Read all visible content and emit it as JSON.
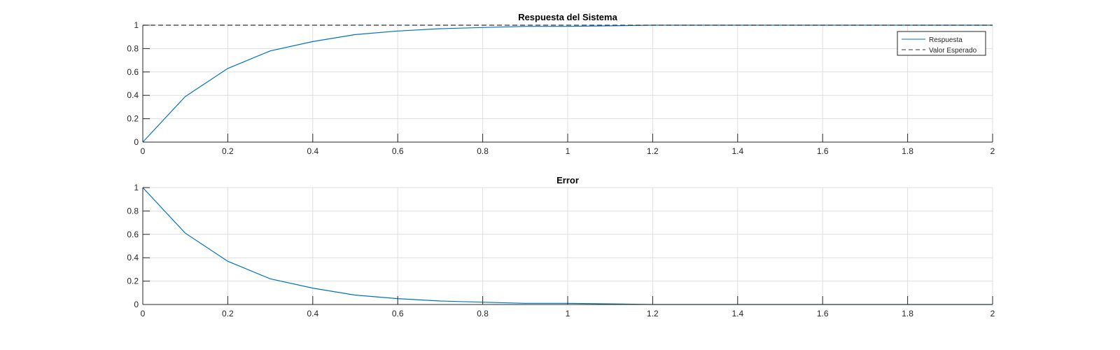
{
  "chart_data": [
    {
      "type": "line",
      "title": "Respuesta del Sistema",
      "xlabel": "",
      "ylabel": "",
      "xlim": [
        0,
        2
      ],
      "ylim": [
        0,
        1
      ],
      "xticks": [
        "0",
        "0.2",
        "0.4",
        "0.6",
        "0.8",
        "1",
        "1.2",
        "1.4",
        "1.6",
        "1.8",
        "2"
      ],
      "yticks": [
        "0",
        "0.2",
        "0.4",
        "0.6",
        "0.8",
        "1"
      ],
      "grid": true,
      "legend_position": "top-right",
      "x": [
        0,
        0.1,
        0.2,
        0.3,
        0.4,
        0.5,
        0.6,
        0.7,
        0.8,
        0.9,
        1.0,
        1.2,
        1.4,
        1.6,
        1.8,
        2.0
      ],
      "series": [
        {
          "name": "Respuesta",
          "color": "#0072BD",
          "style": "solid",
          "values": [
            0,
            0.39,
            0.63,
            0.78,
            0.86,
            0.92,
            0.95,
            0.97,
            0.98,
            0.99,
            0.99,
            1.0,
            1.0,
            1.0,
            1.0,
            1.0
          ]
        },
        {
          "name": "Valor Esperado",
          "color": "#333333",
          "style": "dashed",
          "values": [
            1,
            1,
            1,
            1,
            1,
            1,
            1,
            1,
            1,
            1,
            1,
            1,
            1,
            1,
            1,
            1
          ]
        }
      ]
    },
    {
      "type": "line",
      "title": "Error",
      "xlabel": "",
      "ylabel": "",
      "xlim": [
        0,
        2
      ],
      "ylim": [
        0,
        1
      ],
      "xticks": [
        "0",
        "0.2",
        "0.4",
        "0.6",
        "0.8",
        "1",
        "1.2",
        "1.4",
        "1.6",
        "1.8",
        "2"
      ],
      "yticks": [
        "0",
        "0.2",
        "0.4",
        "0.6",
        "0.8",
        "1"
      ],
      "grid": true,
      "x": [
        0,
        0.1,
        0.2,
        0.3,
        0.4,
        0.5,
        0.6,
        0.7,
        0.8,
        0.9,
        1.0,
        1.2,
        1.4,
        1.6,
        1.8,
        2.0
      ],
      "series": [
        {
          "color": "#0072BD",
          "style": "solid",
          "values": [
            1,
            0.61,
            0.37,
            0.22,
            0.14,
            0.08,
            0.05,
            0.03,
            0.02,
            0.01,
            0.01,
            0.0,
            0.0,
            0.0,
            0.0,
            0.0
          ]
        }
      ]
    }
  ]
}
